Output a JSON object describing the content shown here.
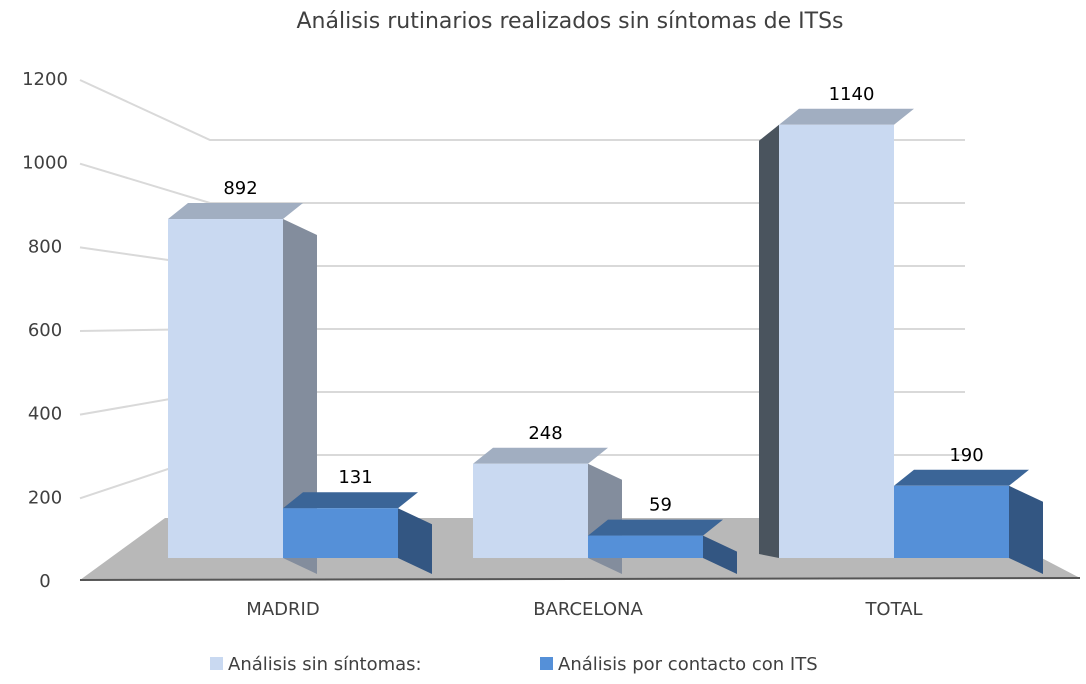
{
  "chart_data": {
    "type": "bar3d",
    "title": "Análisis rutinarios realizados sin síntomas de ITSs",
    "categories": [
      "MADRID",
      "BARCELONA",
      "TOTAL"
    ],
    "series": [
      {
        "name": "Análisis sin síntomas:",
        "color": "#c9d9f1",
        "values": [
          892,
          248,
          1140
        ]
      },
      {
        "name": "Análisis por contacto con ITS",
        "color": "#5590d8",
        "values": [
          131,
          59,
          190
        ]
      }
    ],
    "ylim": [
      0,
      1200
    ],
    "yticks": [
      0,
      200,
      400,
      600,
      800,
      1000,
      1200
    ],
    "grid": true,
    "legend": "bottom"
  }
}
